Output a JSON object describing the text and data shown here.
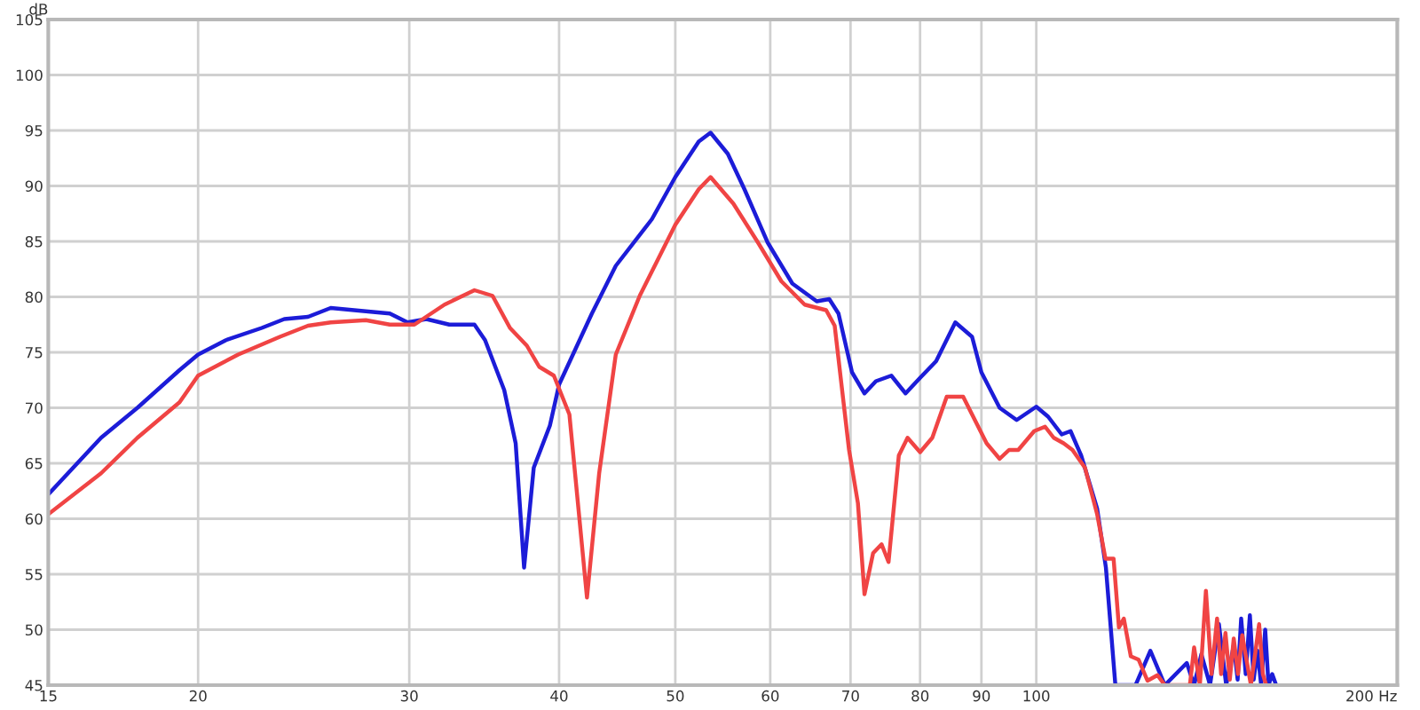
{
  "chart_data": {
    "type": "line",
    "ylabel": "dB",
    "log": "x",
    "xlim": [
      15,
      200
    ],
    "ylim": [
      45,
      105
    ],
    "xticks": [
      15,
      20,
      30,
      40,
      50,
      60,
      70,
      80,
      90,
      100,
      {
        "value": 200,
        "label": "200 Hz"
      }
    ],
    "yticks": [
      45,
      50,
      55,
      60,
      65,
      70,
      75,
      80,
      85,
      90,
      95,
      100,
      105
    ],
    "grid": true,
    "line_style": "solid",
    "marker": "none",
    "series": [
      {
        "color": "#1c1cd8",
        "x": [
          15,
          16.6,
          17.8,
          19.3,
          20,
          21.1,
          22.6,
          23.6,
          24.7,
          25.8,
          27.6,
          28.9,
          29.9,
          31.0,
          32.4,
          34.0,
          34.7,
          36.0,
          36.8,
          37.4,
          38.1,
          39.3,
          40,
          42.6,
          44.6,
          47.8,
          50,
          52.3,
          53.5,
          55.3,
          57.1,
          59.7,
          62.6,
          65.6,
          67.2,
          68.4,
          70.2,
          71.9,
          73.5,
          75.7,
          77.8,
          80,
          82.5,
          85.6,
          88.4,
          90,
          93.2,
          96.3,
          100,
          102.3,
          105,
          106.8,
          109,
          112.4,
          114.3,
          116.4,
          121,
          124.5,
          128,
          133.5,
          135.4,
          137.3,
          139.6,
          142,
          144,
          146.1,
          147.2,
          148.2,
          149.5,
          150.7,
          151.8,
          152.9,
          154,
          155.2,
          156.2,
          157.3,
          158.5
        ],
        "values": [
          62.2,
          67.3,
          70.0,
          73.4,
          74.8,
          76.1,
          77.2,
          78.0,
          78.2,
          79.0,
          78.7,
          78.5,
          77.7,
          78.0,
          77.5,
          77.5,
          76.1,
          71.6,
          66.8,
          55.6,
          64.6,
          68.4,
          72.1,
          78.5,
          82.8,
          87.0,
          90.8,
          94.0,
          94.8,
          92.9,
          89.7,
          84.9,
          81.2,
          79.6,
          79.8,
          78.5,
          73.2,
          71.3,
          72.4,
          72.9,
          71.3,
          72.7,
          74.2,
          77.7,
          76.4,
          73.2,
          70.0,
          68.9,
          70.1,
          69.2,
          67.6,
          67.9,
          65.7,
          60.9,
          55.6,
          45,
          45,
          48.1,
          45,
          47,
          45,
          47.8,
          45,
          50.5,
          45,
          48.6,
          45.5,
          51,
          46,
          51.3,
          45.5,
          48.1,
          45,
          50,
          45,
          46,
          45
        ]
      },
      {
        "color": "#f04444",
        "x": [
          15,
          16.6,
          17.8,
          19.3,
          20,
          21.6,
          23.4,
          24.7,
          25.8,
          27.6,
          28.9,
          30.3,
          32.1,
          34.0,
          35.2,
          36.4,
          37.6,
          38.5,
          39.6,
          40.8,
          42.2,
          43.2,
          44.6,
          46.7,
          50,
          52.3,
          53.5,
          55.9,
          58.6,
          61.3,
          64.1,
          66.8,
          67.9,
          69.8,
          71,
          71.9,
          73.1,
          74.3,
          75.3,
          76.8,
          78.1,
          80,
          81.9,
          84.2,
          86.9,
          88.4,
          90.9,
          93.2,
          94.9,
          96.6,
          99.6,
          101.7,
          103.4,
          105.4,
          107.2,
          109.8,
          112.4,
          114.2,
          116,
          117.2,
          118.3,
          119.9,
          121.7,
          123.8,
          126.2,
          128,
          134.3,
          135.4,
          136.9,
          138.5,
          140,
          141.5,
          142.6,
          143.8,
          145,
          146.1,
          147.3,
          148.5,
          151,
          153.4,
          154.5,
          155.5
        ],
        "values": [
          60.4,
          64.1,
          67.3,
          70.5,
          72.9,
          74.8,
          76.4,
          77.4,
          77.7,
          77.9,
          77.5,
          77.5,
          79.3,
          80.6,
          80.1,
          77.2,
          75.6,
          73.7,
          72.9,
          69.4,
          52.9,
          64.1,
          74.8,
          80.1,
          86.5,
          89.7,
          90.8,
          88.4,
          84.9,
          81.4,
          79.3,
          78.8,
          77.4,
          66.2,
          61.4,
          53.2,
          56.9,
          57.7,
          56.1,
          65.7,
          67.3,
          66.0,
          67.3,
          71.0,
          71.0,
          69.4,
          66.8,
          65.4,
          66.2,
          66.2,
          67.9,
          68.3,
          67.3,
          66.8,
          66.2,
          64.6,
          60.4,
          56.4,
          56.4,
          50.2,
          51.0,
          47.6,
          47.3,
          45.4,
          45.9,
          45,
          45,
          48.4,
          45,
          53.5,
          46,
          51,
          46,
          49.7,
          45.5,
          49.2,
          46,
          49.5,
          45,
          50.5,
          46,
          45
        ]
      }
    ]
  }
}
